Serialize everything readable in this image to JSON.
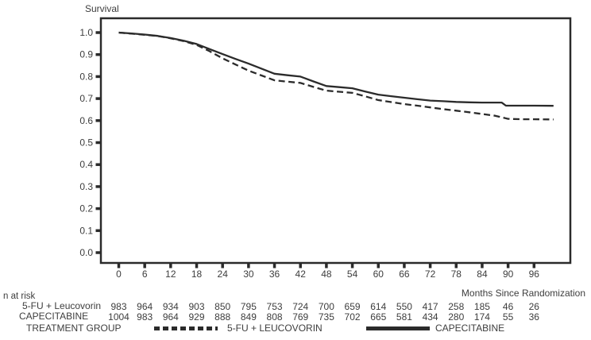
{
  "title": "Survival",
  "colors": {
    "line": "#2b2b2b",
    "text": "#3d3d3d",
    "background": "#ffffff"
  },
  "chart_data": {
    "type": "line",
    "title": "Survival",
    "xlabel": "Months Since Randomization",
    "ylabel": "Survival",
    "xlim": [
      0,
      104
    ],
    "ylim": [
      0.0,
      1.0
    ],
    "grid": false,
    "legend_position": "bottom",
    "x_ticks": [
      0,
      6,
      12,
      18,
      24,
      30,
      36,
      42,
      48,
      54,
      60,
      66,
      72,
      78,
      84,
      90,
      96
    ],
    "y_ticks": [
      "0.0",
      "0.1",
      "0.2",
      "0.3",
      "0.4",
      "0.5",
      "0.6",
      "0.7",
      "0.8",
      "0.9",
      "1.0"
    ],
    "series": [
      {
        "name": "5-FU + LEUCOVORIN",
        "style": "dashed",
        "x": [
          0,
          3,
          6,
          9,
          12,
          15,
          18,
          21,
          24,
          27,
          30,
          33,
          36,
          39,
          42,
          45,
          48,
          51,
          54,
          57,
          60,
          63,
          66,
          69,
          72,
          75,
          78,
          81,
          84,
          87,
          90,
          93,
          96,
          100.5
        ],
        "values": [
          1.0,
          0.995,
          0.99,
          0.984,
          0.974,
          0.961,
          0.944,
          0.915,
          0.883,
          0.855,
          0.827,
          0.805,
          0.783,
          0.777,
          0.771,
          0.753,
          0.736,
          0.731,
          0.726,
          0.71,
          0.693,
          0.684,
          0.675,
          0.668,
          0.66,
          0.652,
          0.645,
          0.638,
          0.63,
          0.622,
          0.608,
          0.606,
          0.606,
          0.605
        ]
      },
      {
        "name": "CAPECITABINE",
        "style": "solid",
        "x": [
          0,
          3,
          6,
          9,
          12,
          15,
          18,
          21,
          24,
          27,
          30,
          33,
          36,
          39,
          42,
          45,
          48,
          51,
          54,
          57,
          60,
          63,
          66,
          69,
          72,
          75,
          78,
          81,
          84,
          88.5,
          89.5,
          96,
          100.5
        ],
        "values": [
          1.0,
          0.996,
          0.991,
          0.985,
          0.975,
          0.963,
          0.948,
          0.925,
          0.902,
          0.88,
          0.859,
          0.836,
          0.813,
          0.806,
          0.8,
          0.778,
          0.757,
          0.752,
          0.747,
          0.732,
          0.718,
          0.711,
          0.704,
          0.697,
          0.691,
          0.688,
          0.685,
          0.683,
          0.682,
          0.682,
          0.668,
          0.668,
          0.667
        ]
      }
    ]
  },
  "risk_table": {
    "label": "n at risk",
    "axis_label": "Months Since Randomization",
    "rows": [
      {
        "label": "5-FU + Leucovorin",
        "values": [
          "983",
          "964",
          "934",
          "903",
          "850",
          "795",
          "753",
          "724",
          "700",
          "659",
          "614",
          "550",
          "417",
          "258",
          "185",
          "46",
          "26"
        ]
      },
      {
        "label": "CAPECITABINE",
        "values": [
          "1004",
          "983",
          "964",
          "929",
          "888",
          "849",
          "808",
          "769",
          "735",
          "702",
          "665",
          "581",
          "434",
          "280",
          "174",
          "55",
          "36"
        ]
      }
    ]
  },
  "legend": {
    "title": "TREATMENT GROUP",
    "items": [
      {
        "label": "5-FU + LEUCOVORIN",
        "style": "dashed"
      },
      {
        "label": "CAPECITABINE",
        "style": "solid"
      }
    ]
  }
}
